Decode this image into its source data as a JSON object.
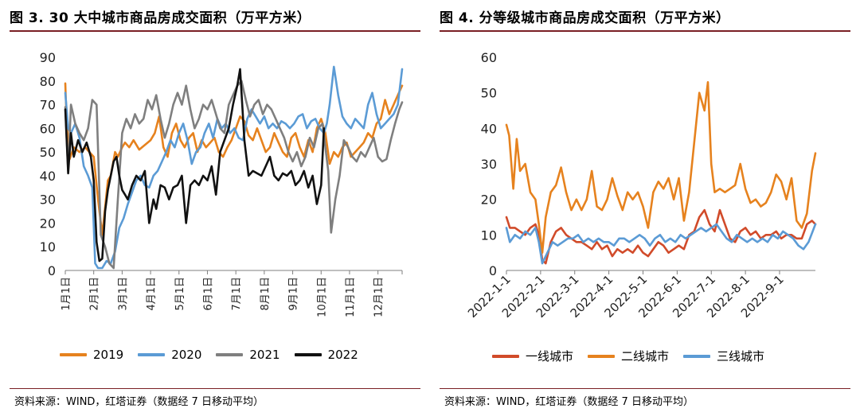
{
  "left": {
    "title": "图 3. 30 大中城市商品房成交面积（万平方米）",
    "source": "资料来源：WIND，红塔证券（数据经 7 日移动平均）",
    "chart_data": {
      "type": "line",
      "ylim": [
        0,
        90
      ],
      "yticks": [
        0,
        10,
        20,
        30,
        40,
        50,
        60,
        70,
        80,
        90
      ],
      "xticks": [
        "1月1日",
        "2月1日",
        "3月1日",
        "4月1日",
        "5月1日",
        "6月1日",
        "7月1日",
        "8月1日",
        "9月1日",
        "10月1日",
        "11月1日",
        "12月1日"
      ],
      "x_month_index": [
        0,
        1,
        2,
        3,
        4,
        5,
        6,
        7,
        8,
        9,
        10,
        11
      ],
      "grid": false,
      "legend_position": "bottom",
      "series": [
        {
          "name": "2019",
          "color": "#e6821e",
          "x": [
            0,
            0.05,
            0.15,
            0.3,
            0.5,
            0.7,
            0.85,
            1.0,
            1.15,
            1.3,
            1.5,
            1.6,
            1.75,
            1.85,
            2.0,
            2.1,
            2.25,
            2.4,
            2.6,
            2.8,
            3.0,
            3.15,
            3.3,
            3.45,
            3.6,
            3.75,
            3.9,
            4.05,
            4.2,
            4.35,
            4.5,
            4.65,
            4.8,
            4.95,
            5.1,
            5.25,
            5.4,
            5.55,
            5.7,
            5.85,
            6.0,
            6.15,
            6.3,
            6.45,
            6.6,
            6.75,
            6.9,
            7.05,
            7.2,
            7.35,
            7.5,
            7.65,
            7.8,
            7.95,
            8.1,
            8.25,
            8.4,
            8.55,
            8.7,
            8.85,
            9.0,
            9.15,
            9.3,
            9.45,
            9.6,
            9.75,
            9.9,
            10.05,
            10.2,
            10.35,
            10.5,
            10.65,
            10.8,
            10.95,
            11.1,
            11.25,
            11.4,
            11.55,
            11.7,
            11.85
          ],
          "y": [
            79,
            62,
            47,
            52,
            50,
            52,
            50,
            48,
            30,
            15,
            38,
            40,
            50,
            48,
            52,
            54,
            52,
            55,
            51,
            53,
            55,
            58,
            65,
            52,
            48,
            58,
            62,
            55,
            52,
            56,
            58,
            50,
            55,
            52,
            54,
            56,
            50,
            48,
            52,
            55,
            60,
            65,
            63,
            57,
            55,
            60,
            55,
            50,
            52,
            58,
            54,
            50,
            48,
            56,
            58,
            52,
            48,
            55,
            50,
            60,
            64,
            58,
            45,
            50,
            48,
            52,
            54,
            48,
            50,
            52,
            54,
            58,
            56,
            62,
            64,
            72,
            66,
            70,
            74,
            78
          ]
        },
        {
          "name": "2020",
          "color": "#5b9bd5",
          "x": [
            0,
            0.1,
            0.2,
            0.35,
            0.5,
            0.65,
            0.8,
            0.95,
            1.05,
            1.15,
            1.3,
            1.45,
            1.6,
            1.75,
            1.9,
            2.05,
            2.2,
            2.35,
            2.5,
            2.65,
            2.8,
            2.95,
            3.1,
            3.25,
            3.4,
            3.55,
            3.7,
            3.85,
            4.0,
            4.15,
            4.3,
            4.45,
            4.6,
            4.75,
            4.9,
            5.05,
            5.2,
            5.35,
            5.5,
            5.65,
            5.8,
            5.95,
            6.1,
            6.25,
            6.4,
            6.55,
            6.7,
            6.85,
            7.0,
            7.15,
            7.3,
            7.45,
            7.6,
            7.75,
            7.9,
            8.05,
            8.2,
            8.35,
            8.5,
            8.65,
            8.8,
            8.95,
            9.1,
            9.2,
            9.3,
            9.45,
            9.6,
            9.75,
            9.9,
            10.05,
            10.2,
            10.35,
            10.5,
            10.65,
            10.8,
            10.95,
            11.1,
            11.25,
            11.4,
            11.55,
            11.7,
            11.85
          ],
          "y": [
            75,
            60,
            58,
            62,
            56,
            44,
            40,
            35,
            3,
            1,
            1,
            4,
            3,
            8,
            18,
            22,
            28,
            33,
            38,
            40,
            36,
            35,
            40,
            42,
            46,
            50,
            55,
            52,
            58,
            62,
            55,
            45,
            50,
            52,
            58,
            62,
            56,
            64,
            60,
            62,
            58,
            60,
            56,
            55,
            64,
            68,
            65,
            62,
            65,
            60,
            62,
            60,
            63,
            62,
            60,
            62,
            65,
            66,
            60,
            63,
            64,
            60,
            58,
            62,
            70,
            86,
            74,
            65,
            62,
            60,
            64,
            62,
            60,
            70,
            75,
            66,
            60,
            62,
            64,
            66,
            70,
            85
          ]
        },
        {
          "name": "2021",
          "color": "#7f7f7f",
          "x": [
            0,
            0.1,
            0.2,
            0.35,
            0.5,
            0.65,
            0.8,
            0.95,
            1.1,
            1.25,
            1.4,
            1.55,
            1.7,
            1.85,
            2.0,
            2.15,
            2.3,
            2.45,
            2.6,
            2.75,
            2.9,
            3.05,
            3.2,
            3.35,
            3.5,
            3.65,
            3.8,
            3.95,
            4.1,
            4.25,
            4.4,
            4.55,
            4.7,
            4.85,
            5.0,
            5.15,
            5.3,
            5.45,
            5.6,
            5.75,
            5.9,
            6.05,
            6.2,
            6.35,
            6.5,
            6.65,
            6.8,
            6.95,
            7.1,
            7.25,
            7.4,
            7.55,
            7.7,
            7.85,
            8.0,
            8.15,
            8.3,
            8.45,
            8.6,
            8.75,
            8.9,
            9.05,
            9.15,
            9.25,
            9.35,
            9.5,
            9.65,
            9.8,
            9.95,
            10.1,
            10.25,
            10.4,
            10.55,
            10.7,
            10.85,
            11.0,
            11.15,
            11.3,
            11.45,
            11.6,
            11.75,
            11.85
          ],
          "y": [
            69,
            42,
            70,
            62,
            58,
            55,
            60,
            72,
            70,
            15,
            10,
            3,
            1,
            30,
            58,
            64,
            60,
            66,
            62,
            64,
            72,
            68,
            74,
            64,
            56,
            62,
            70,
            75,
            70,
            78,
            68,
            60,
            64,
            70,
            68,
            72,
            66,
            60,
            58,
            70,
            74,
            78,
            80,
            72,
            65,
            70,
            72,
            66,
            70,
            68,
            64,
            60,
            56,
            50,
            46,
            50,
            44,
            48,
            56,
            52,
            60,
            62,
            52,
            42,
            16,
            30,
            40,
            55,
            52,
            48,
            46,
            50,
            48,
            52,
            56,
            48,
            46,
            47,
            55,
            62,
            68,
            71
          ]
        },
        {
          "name": "2022",
          "color": "#111111",
          "x": [
            0,
            0.1,
            0.2,
            0.3,
            0.45,
            0.6,
            0.75,
            0.9,
            1.0,
            1.1,
            1.2,
            1.3,
            1.4,
            1.5,
            1.6,
            1.7,
            1.8,
            1.9,
            2.0,
            2.1,
            2.2,
            2.35,
            2.5,
            2.65,
            2.8,
            2.95,
            3.1,
            3.2,
            3.35,
            3.5,
            3.65,
            3.8,
            3.95,
            4.1,
            4.25,
            4.4,
            4.55,
            4.7,
            4.85,
            5.0,
            5.15,
            5.3,
            5.45,
            5.6,
            5.75,
            5.9,
            6.05,
            6.15,
            6.3,
            6.45,
            6.6,
            6.75,
            6.9,
            7.05,
            7.2,
            7.35,
            7.5,
            7.65,
            7.8,
            7.95,
            8.1,
            8.25,
            8.4,
            8.55,
            8.7,
            8.85,
            9.0,
            9.1
          ],
          "y": [
            68,
            41,
            58,
            48,
            55,
            50,
            54,
            48,
            38,
            12,
            4,
            5,
            25,
            34,
            40,
            46,
            48,
            40,
            34,
            32,
            30,
            36,
            40,
            38,
            42,
            20,
            30,
            26,
            36,
            35,
            30,
            35,
            36,
            40,
            20,
            36,
            38,
            36,
            40,
            38,
            44,
            32,
            50,
            55,
            60,
            70,
            78,
            85,
            55,
            40,
            42,
            41,
            40,
            44,
            48,
            40,
            38,
            41,
            40,
            42,
            36,
            38,
            42,
            35,
            40,
            28,
            36,
            60
          ]
        }
      ]
    }
  },
  "right": {
    "title": "图 4. 分等级城市商品房成交面积（万平方米）",
    "source": "资料来源：WIND，红塔证券（数据经 7 日移动平均）",
    "chart_data": {
      "type": "line",
      "ylim": [
        0,
        60
      ],
      "yticks": [
        0,
        10,
        20,
        30,
        40,
        50,
        60
      ],
      "xticks": [
        "2022-1-1",
        "2022-2-1",
        "2022-3-1",
        "2022-4-1",
        "2022-5-1",
        "2022-6-1",
        "2022-7-1",
        "2022-8-1",
        "2022-9-1"
      ],
      "x_month_index": [
        0,
        1,
        2,
        3,
        4,
        5,
        6,
        7,
        8
      ],
      "grid": false,
      "legend_position": "bottom",
      "series": [
        {
          "name": "一线城市",
          "color": "#d14b2a",
          "x": [
            0,
            0.1,
            0.25,
            0.4,
            0.55,
            0.7,
            0.85,
            0.95,
            1.05,
            1.15,
            1.3,
            1.45,
            1.6,
            1.75,
            1.9,
            2.05,
            2.2,
            2.35,
            2.5,
            2.65,
            2.8,
            2.95,
            3.1,
            3.25,
            3.4,
            3.55,
            3.7,
            3.85,
            4.0,
            4.15,
            4.3,
            4.45,
            4.6,
            4.75,
            4.9,
            5.05,
            5.2,
            5.35,
            5.5,
            5.65,
            5.8,
            5.95,
            6.1,
            6.25,
            6.4,
            6.55,
            6.7,
            6.85,
            7.0,
            7.15,
            7.3,
            7.45,
            7.6,
            7.75,
            7.9,
            8.05,
            8.2,
            8.35,
            8.5,
            8.65,
            8.8,
            8.95,
            9.05
          ],
          "y": [
            15,
            12,
            12,
            11,
            10,
            12,
            13,
            10,
            3,
            2,
            8,
            11,
            12,
            10,
            9,
            8,
            8,
            7,
            6,
            8,
            6,
            7,
            4,
            6,
            5,
            6,
            5,
            7,
            5,
            4,
            6,
            8,
            7,
            5,
            6,
            7,
            6,
            10,
            11,
            15,
            17,
            13,
            11,
            17,
            13,
            9,
            8,
            11,
            12,
            10,
            11,
            9,
            10,
            10,
            11,
            9,
            10,
            10,
            9,
            9,
            13,
            14,
            13
          ]
        },
        {
          "name": "二线城市",
          "color": "#e6821e",
          "x": [
            0,
            0.08,
            0.2,
            0.3,
            0.4,
            0.55,
            0.7,
            0.85,
            0.95,
            1.05,
            1.15,
            1.3,
            1.45,
            1.6,
            1.75,
            1.9,
            2.05,
            2.2,
            2.35,
            2.5,
            2.65,
            2.8,
            2.95,
            3.1,
            3.25,
            3.4,
            3.55,
            3.7,
            3.85,
            4.0,
            4.15,
            4.3,
            4.45,
            4.6,
            4.75,
            4.9,
            5.05,
            5.2,
            5.35,
            5.5,
            5.65,
            5.8,
            5.9,
            6.0,
            6.1,
            6.25,
            6.4,
            6.55,
            6.7,
            6.85,
            7.0,
            7.15,
            7.3,
            7.45,
            7.6,
            7.75,
            7.9,
            8.05,
            8.2,
            8.35,
            8.5,
            8.65,
            8.8,
            8.95,
            9.05
          ],
          "y": [
            41,
            38,
            23,
            37,
            28,
            30,
            22,
            20,
            13,
            5,
            15,
            22,
            24,
            29,
            22,
            17,
            20,
            17,
            20,
            28,
            18,
            17,
            20,
            26,
            21,
            17,
            22,
            20,
            22,
            18,
            12,
            22,
            25,
            23,
            26,
            20,
            26,
            14,
            22,
            36,
            50,
            45,
            53,
            30,
            22,
            23,
            22,
            23,
            24,
            30,
            23,
            19,
            20,
            18,
            19,
            22,
            27,
            25,
            20,
            26,
            14,
            12,
            16,
            28,
            33
          ]
        },
        {
          "name": "三线城市",
          "color": "#5b9bd5",
          "x": [
            0,
            0.1,
            0.25,
            0.4,
            0.55,
            0.7,
            0.85,
            0.95,
            1.05,
            1.2,
            1.35,
            1.5,
            1.65,
            1.8,
            1.95,
            2.1,
            2.25,
            2.4,
            2.55,
            2.7,
            2.85,
            3.0,
            3.15,
            3.3,
            3.45,
            3.6,
            3.75,
            3.9,
            4.05,
            4.2,
            4.35,
            4.5,
            4.65,
            4.8,
            4.95,
            5.1,
            5.25,
            5.4,
            5.55,
            5.7,
            5.85,
            6.0,
            6.15,
            6.3,
            6.45,
            6.6,
            6.75,
            6.9,
            7.05,
            7.2,
            7.35,
            7.5,
            7.65,
            7.8,
            7.95,
            8.1,
            8.25,
            8.4,
            8.55,
            8.7,
            8.85,
            9.05
          ],
          "y": [
            12,
            8,
            10,
            9,
            11,
            10,
            12,
            8,
            2,
            5,
            8,
            7,
            8,
            9,
            9,
            10,
            8,
            9,
            8,
            9,
            8,
            8,
            7,
            9,
            9,
            8,
            9,
            10,
            9,
            7,
            9,
            10,
            8,
            9,
            8,
            10,
            9,
            10,
            11,
            12,
            11,
            12,
            13,
            11,
            9,
            8,
            10,
            9,
            8,
            9,
            8,
            9,
            8,
            10,
            9,
            11,
            10,
            9,
            7,
            6,
            8,
            13
          ]
        }
      ]
    }
  }
}
